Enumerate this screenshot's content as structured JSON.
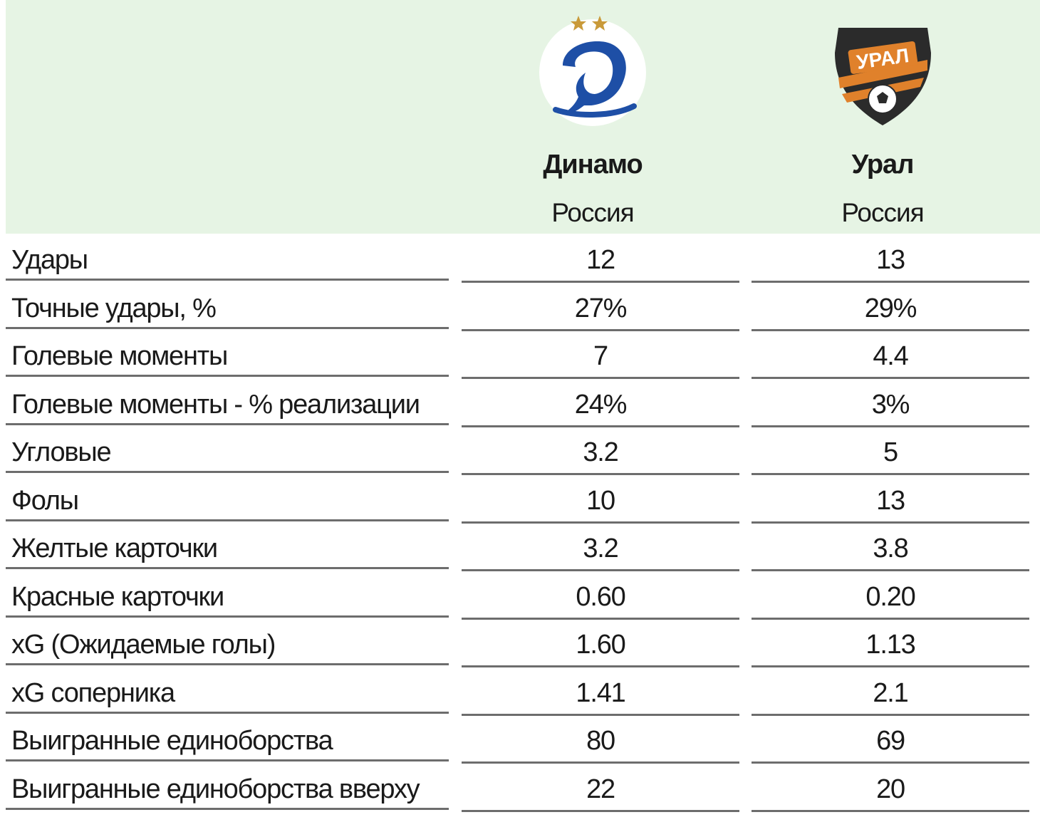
{
  "teams": {
    "home": {
      "name": "Динамо",
      "country": "Россия",
      "logo_icon": "dynamo-logo-icon",
      "logo_color": "#1e4fa6"
    },
    "away": {
      "name": "Урал",
      "country": "Россия",
      "logo_icon": "ural-logo-icon",
      "logo_color": "#e0812b",
      "logo_text": "УРАЛ"
    }
  },
  "colors": {
    "header_bg": "#e6f4e4",
    "row_rule": "#6d6d6d"
  },
  "rows": [
    {
      "label": "Удары",
      "home": "12",
      "away": "13"
    },
    {
      "label": "Точные удары, %",
      "home": "27%",
      "away": "29%"
    },
    {
      "label": "Голевые моменты",
      "home": "7",
      "away": "4.4"
    },
    {
      "label": "Голевые моменты - % реализации",
      "home": "24%",
      "away": "3%"
    },
    {
      "label": "Угловые",
      "home": "3.2",
      "away": "5"
    },
    {
      "label": "Фолы",
      "home": "10",
      "away": "13"
    },
    {
      "label": "Желтые карточки",
      "home": "3.2",
      "away": "3.8"
    },
    {
      "label": "Красные карточки",
      "home": "0.60",
      "away": "0.20"
    },
    {
      "label": "xG (Ожидаемые голы)",
      "home": "1.60",
      "away": "1.13"
    },
    {
      "label": "xG соперника",
      "home": "1.41",
      "away": "2.1"
    },
    {
      "label": "Выигранные единоборства",
      "home": "80",
      "away": "69"
    },
    {
      "label": "Выигранные единоборства вверху",
      "home": "22",
      "away": "20"
    }
  ]
}
